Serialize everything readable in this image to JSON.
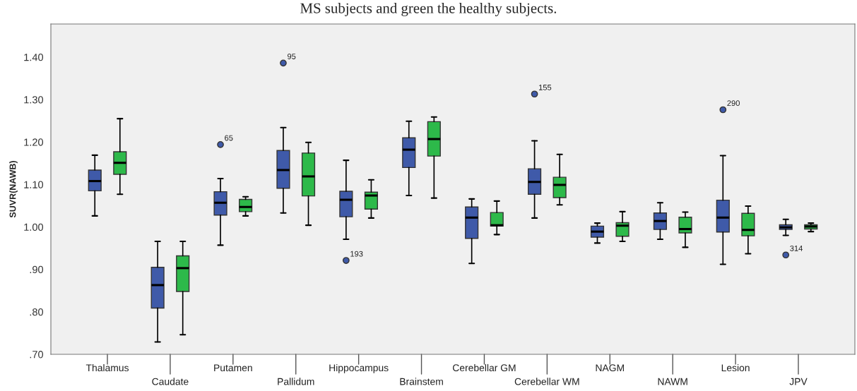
{
  "chart_data": {
    "type": "box",
    "ylabel": "SUVR(NAWB)",
    "annotations": [
      "MS subjects and green the healthy subjects.",
      "65",
      "95",
      "193",
      "155",
      "290",
      "314"
    ],
    "categories": [
      "Thalamus",
      "Caudate",
      "Putamen",
      "Pallidum",
      "Hippocampus",
      "Brainstem",
      "Cerebellar GM",
      "Cerebellar WM",
      "NAGM",
      "NAWM",
      "Lesion",
      "JPV"
    ],
    "series": [
      {
        "color": "#3f5aa9",
        "boxes": [
          {
            "low": 1.026,
            "q1": 1.085,
            "median": 1.108,
            "q3": 1.134,
            "high": 1.169
          },
          {
            "low": 0.729,
            "q1": 0.809,
            "median": 0.863,
            "q3": 0.905,
            "high": 0.966
          },
          {
            "low": 0.957,
            "q1": 1.028,
            "median": 1.057,
            "q3": 1.083,
            "high": 1.114,
            "outliers": [
              1.194
            ]
          },
          {
            "low": 1.033,
            "q1": 1.091,
            "median": 1.134,
            "q3": 1.18,
            "high": 1.234,
            "outliers": [
              1.386
            ]
          },
          {
            "low": 0.971,
            "q1": 1.024,
            "median": 1.064,
            "q3": 1.084,
            "high": 1.157,
            "outliers": [
              0.921
            ]
          },
          {
            "low": 1.074,
            "q1": 1.14,
            "median": 1.182,
            "q3": 1.21,
            "high": 1.249
          },
          {
            "low": 0.914,
            "q1": 0.973,
            "median": 1.022,
            "q3": 1.047,
            "high": 1.066
          },
          {
            "low": 1.021,
            "q1": 1.077,
            "median": 1.106,
            "q3": 1.137,
            "high": 1.203,
            "outliers": [
              1.313
            ]
          },
          {
            "low": 0.962,
            "q1": 0.976,
            "median": 0.989,
            "q3": 1.002,
            "high": 1.009
          },
          {
            "low": 0.971,
            "q1": 0.994,
            "median": 1.014,
            "q3": 1.033,
            "high": 1.057
          },
          {
            "low": 0.912,
            "q1": 0.988,
            "median": 1.022,
            "q3": 1.063,
            "high": 1.168,
            "outliers": [
              1.276
            ]
          },
          {
            "low": 0.98,
            "q1": 0.994,
            "median": 0.999,
            "q3": 1.005,
            "high": 1.018,
            "outliers": [
              0.934
            ]
          }
        ]
      },
      {
        "color": "#2db94a",
        "boxes": [
          {
            "low": 1.077,
            "q1": 1.124,
            "median": 1.151,
            "q3": 1.177,
            "high": 1.255
          },
          {
            "low": 0.746,
            "q1": 0.848,
            "median": 0.903,
            "q3": 0.932,
            "high": 0.966
          },
          {
            "low": 1.026,
            "q1": 1.036,
            "median": 1.047,
            "q3": 1.065,
            "high": 1.071
          },
          {
            "low": 1.004,
            "q1": 1.073,
            "median": 1.119,
            "q3": 1.174,
            "high": 1.199
          },
          {
            "low": 1.021,
            "q1": 1.042,
            "median": 1.074,
            "q3": 1.082,
            "high": 1.111
          },
          {
            "low": 1.068,
            "q1": 1.167,
            "median": 1.207,
            "q3": 1.248,
            "high": 1.259
          },
          {
            "low": 0.982,
            "q1": 1.002,
            "median": 1.004,
            "q3": 1.034,
            "high": 1.061
          },
          {
            "low": 1.052,
            "q1": 1.069,
            "median": 1.099,
            "q3": 1.117,
            "high": 1.171
          },
          {
            "low": 0.966,
            "q1": 0.978,
            "median": 1.003,
            "q3": 1.01,
            "high": 1.036
          },
          {
            "low": 0.952,
            "q1": 0.986,
            "median": 0.995,
            "q3": 1.023,
            "high": 1.035
          },
          {
            "low": 0.937,
            "q1": 0.979,
            "median": 0.993,
            "q3": 1.032,
            "high": 1.049
          },
          {
            "low": 0.989,
            "q1": 0.995,
            "median": 1.001,
            "q3": 1.005,
            "high": 1.009
          }
        ]
      }
    ],
    "ylim": [
      0.7,
      1.478
    ],
    "yticks": [
      {
        "value": 0.7,
        "label": ".70"
      },
      {
        "value": 0.8,
        "label": ".80"
      },
      {
        "value": 0.9,
        "label": ".90"
      },
      {
        "value": 1.0,
        "label": "1.00"
      },
      {
        "value": 1.1,
        "label": "1.10"
      },
      {
        "value": 1.2,
        "label": "1.20"
      },
      {
        "value": 1.3,
        "label": "1.30"
      },
      {
        "value": 1.4,
        "label": "1.40"
      }
    ],
    "grid": false,
    "legend": false
  }
}
